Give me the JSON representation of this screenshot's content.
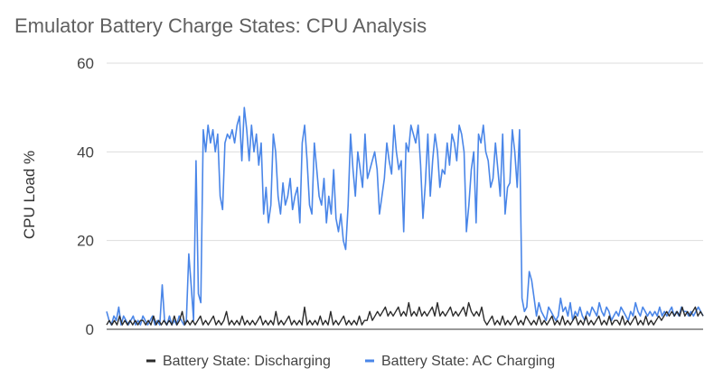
{
  "chart_data": {
    "type": "line",
    "title": "Emulator Battery Charge States: CPU Analysis",
    "xlabel": "",
    "ylabel": "CPU Load %",
    "ylim": [
      0,
      60
    ],
    "yticks": [
      0,
      20,
      40,
      60
    ],
    "grid": true,
    "legend_position": "bottom",
    "series": [
      {
        "name": "Battery State: Discharging",
        "color": "#2b2b2b",
        "values": [
          1,
          2,
          1,
          2,
          1,
          3,
          1,
          2,
          1,
          2,
          1,
          2,
          1,
          2,
          2,
          1,
          2,
          1,
          3,
          1,
          2,
          1,
          2,
          1,
          2,
          1,
          3,
          1,
          2,
          4,
          1,
          2,
          1,
          2,
          1,
          2,
          3,
          1,
          2,
          1,
          2,
          3,
          1,
          2,
          1,
          2,
          4,
          1,
          2,
          1,
          2,
          1,
          3,
          1,
          2,
          1,
          2,
          1,
          2,
          3,
          1,
          2,
          1,
          2,
          1,
          4,
          1,
          2,
          1,
          2,
          3,
          1,
          2,
          1,
          2,
          1,
          5,
          1,
          2,
          1,
          2,
          1,
          3,
          1,
          2,
          1,
          4,
          1,
          2,
          1,
          2,
          3,
          1,
          2,
          1,
          2,
          1,
          3,
          1,
          2,
          2,
          4,
          2,
          3,
          4,
          3,
          4,
          5,
          3,
          4,
          3,
          4,
          5,
          3,
          4,
          3,
          6,
          3,
          4,
          3,
          5,
          3,
          4,
          3,
          4,
          5,
          3,
          6,
          3,
          4,
          3,
          4,
          5,
          3,
          4,
          3,
          4,
          5,
          3,
          6,
          4,
          3,
          4,
          3,
          5,
          2,
          1,
          2,
          3,
          1,
          2,
          1,
          3,
          1,
          2,
          1,
          2,
          3,
          1,
          2,
          1,
          3,
          2,
          1,
          2,
          1,
          3,
          1,
          2,
          1,
          2,
          3,
          1,
          2,
          1,
          3,
          1,
          2,
          1,
          2,
          3,
          1,
          2,
          1,
          3,
          1,
          2,
          1,
          2,
          3,
          1,
          2,
          1,
          3,
          1,
          2,
          2,
          1,
          3,
          1,
          2,
          1,
          2,
          3,
          1,
          2,
          1,
          3,
          1,
          2,
          1,
          2,
          3,
          2,
          3,
          4,
          3,
          4,
          3,
          4,
          3,
          5,
          3,
          4,
          3,
          4,
          5,
          3,
          4,
          3
        ]
      },
      {
        "name": "Battery State: AC Charging",
        "color": "#4a86e8",
        "values": [
          4,
          2,
          1,
          3,
          2,
          5,
          1,
          3,
          2,
          1,
          2,
          3,
          1,
          2,
          1,
          3,
          2,
          1,
          2,
          3,
          1,
          2,
          1,
          10,
          2,
          1,
          3,
          1,
          2,
          1,
          3,
          2,
          1,
          2,
          17,
          10,
          2,
          38,
          8,
          6,
          45,
          40,
          46,
          42,
          45,
          40,
          44,
          30,
          27,
          42,
          44,
          43,
          45,
          42,
          46,
          48,
          38,
          50,
          45,
          38,
          46,
          40,
          44,
          37,
          42,
          26,
          32,
          24,
          28,
          44,
          40,
          30,
          26,
          33,
          28,
          30,
          34,
          27,
          30,
          32,
          24,
          42,
          46,
          38,
          28,
          26,
          42,
          36,
          30,
          28,
          34,
          24,
          30,
          26,
          36,
          25,
          22,
          26,
          20,
          18,
          28,
          44,
          36,
          30,
          40,
          36,
          32,
          44,
          34,
          36,
          38,
          40,
          36,
          26,
          30,
          34,
          42,
          38,
          35,
          46,
          40,
          36,
          38,
          22,
          42,
          40,
          46,
          44,
          42,
          46,
          37,
          25,
          33,
          44,
          30,
          38,
          44,
          40,
          32,
          36,
          35,
          42,
          37,
          44,
          42,
          38,
          46,
          44,
          40,
          22,
          28,
          36,
          40,
          24,
          44,
          42,
          46,
          40,
          38,
          32,
          34,
          42,
          36,
          30,
          44,
          26,
          32,
          33,
          45,
          40,
          32,
          45,
          7,
          4,
          5,
          13,
          11,
          7,
          3,
          6,
          4,
          3,
          2,
          5,
          4,
          3,
          2,
          3,
          7,
          4,
          5,
          3,
          6,
          2,
          4,
          3,
          5,
          3,
          2,
          4,
          3,
          5,
          4,
          3,
          6,
          4,
          3,
          5,
          4,
          2,
          3,
          4,
          3,
          5,
          4,
          3,
          2,
          4,
          3,
          6,
          4,
          3,
          5,
          4,
          3,
          4,
          3,
          4,
          3,
          5,
          3,
          4,
          3,
          4,
          5,
          3,
          4,
          3,
          5,
          4,
          4,
          3,
          4,
          3,
          4,
          5,
          4,
          3
        ]
      }
    ]
  }
}
